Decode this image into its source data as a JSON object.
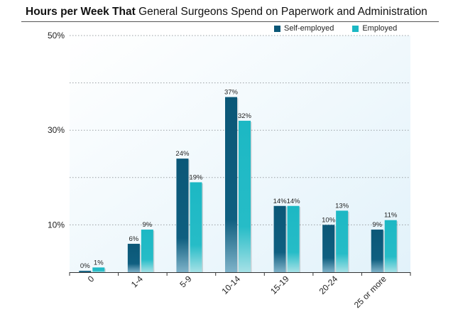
{
  "chart_data": {
    "type": "bar",
    "title_bold": "Hours per Week That",
    "title_rest": "General Surgeons Spend on Paperwork and Administration",
    "xlabel": "",
    "ylabel": "",
    "ylim": [
      0,
      50
    ],
    "yticks": [
      {
        "value": 10,
        "label": "10%"
      },
      {
        "value": 30,
        "label": "30%"
      },
      {
        "value": 50,
        "label": "50%"
      }
    ],
    "grid_values": [
      20,
      40
    ],
    "categories": [
      "0",
      "1-4",
      "5-9",
      "10-14",
      "15-19",
      "20-24",
      "25 or more"
    ],
    "series": [
      {
        "name": "Self-employed",
        "color": "#0b5777",
        "values": [
          0,
          6,
          24,
          37,
          14,
          10,
          9
        ],
        "labels": [
          "0%",
          "6%",
          "24%",
          "37%",
          "14%",
          "10%",
          "9%"
        ]
      },
      {
        "name": "Employed",
        "color": "#1cb8c4",
        "values": [
          1,
          9,
          19,
          32,
          14,
          13,
          11
        ],
        "labels": [
          "1%",
          "9%",
          "19%",
          "32%",
          "14%",
          "13%",
          "11%"
        ]
      }
    ],
    "legend_position": "top-right"
  }
}
